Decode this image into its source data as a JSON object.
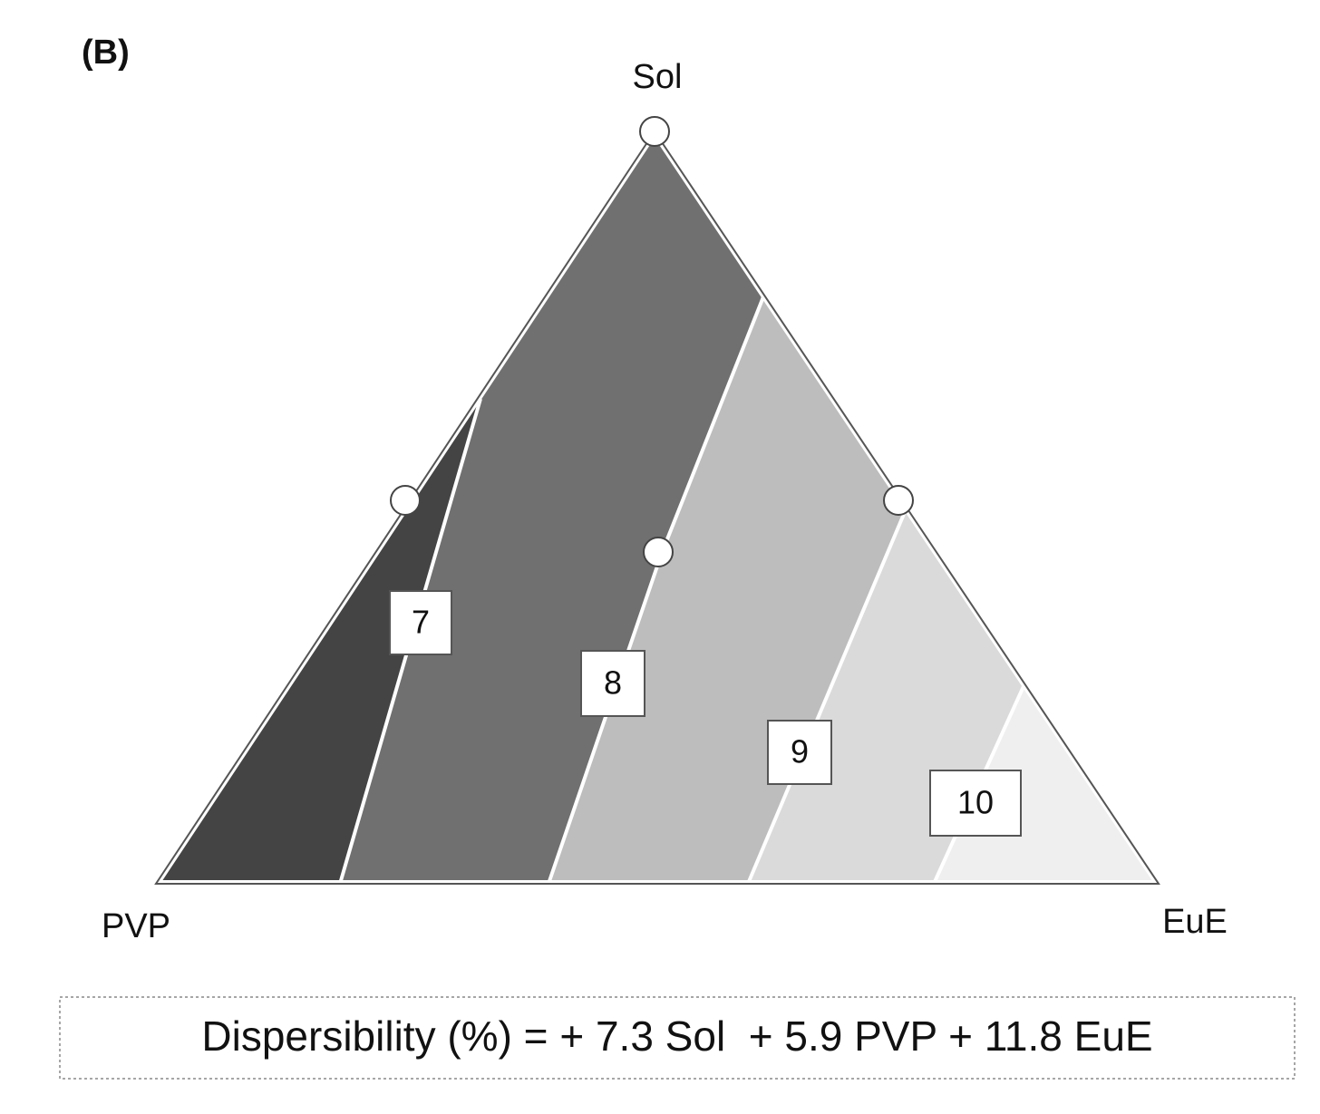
{
  "chart_data": {
    "type": "ternary",
    "panel_label": "(B)",
    "vertices": [
      "Sol",
      "PVP",
      "EuE"
    ],
    "contour_levels": [
      7,
      8,
      9,
      10
    ],
    "equation": "Dispersibility (%) = + 7.3 Sol  + 5.9 PVP + 11.8 EuE"
  }
}
